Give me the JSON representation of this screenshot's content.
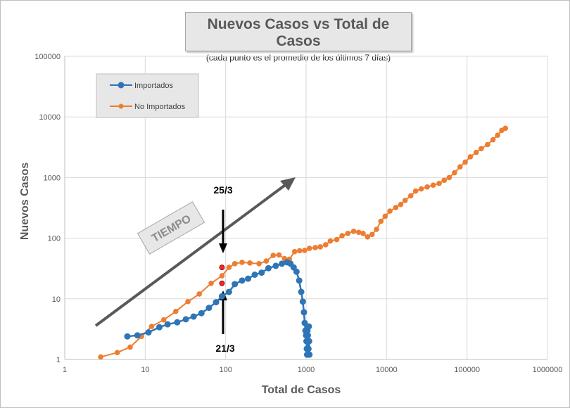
{
  "chart_data": {
    "type": "scatter",
    "title": "Nuevos Casos vs Total de Casos",
    "subtitle": "(cada punto es el promedio de los últimos 7 días)",
    "xlabel": "Total de Casos",
    "ylabel": "Nuevos Casos",
    "xscale": "log",
    "yscale": "log",
    "xlim": [
      1,
      1000000
    ],
    "ylim": [
      1,
      100000
    ],
    "grid": true,
    "legend_position": "top-left",
    "x_tick_labels": [
      "1",
      "10",
      "100",
      "1000",
      "10000",
      "100000",
      "1000000"
    ],
    "y_tick_labels": [
      "1",
      "10",
      "100",
      "1000",
      "10000",
      "100000"
    ],
    "series": [
      {
        "name": "Importados",
        "color": "#2e75b6",
        "x": [
          6,
          8,
          11,
          15,
          19,
          25,
          32,
          40,
          50,
          62,
          76,
          90,
          110,
          130,
          160,
          190,
          230,
          280,
          340,
          420,
          500,
          580,
          640,
          700,
          760,
          820,
          870,
          910,
          940,
          960,
          980,
          1000,
          1010,
          1020,
          1030,
          1040,
          1050,
          1060,
          1070,
          1080,
          1090,
          1100
        ],
        "y": [
          2.4,
          2.5,
          2.8,
          3.4,
          3.8,
          4.1,
          4.6,
          5.1,
          5.8,
          7.1,
          8.8,
          11,
          13,
          17.5,
          20,
          21.5,
          25,
          27,
          32,
          35,
          38,
          40,
          38,
          33,
          28,
          20,
          13,
          9,
          6,
          4,
          3,
          2.5,
          2,
          1.5,
          1.2,
          3,
          2.5,
          2,
          1.5,
          3.5,
          2,
          1.2
        ]
      },
      {
        "name": "No Importados",
        "color": "#ed7d31",
        "x": [
          2.8,
          4.5,
          6.5,
          9,
          12,
          17,
          24,
          34,
          47,
          66,
          90,
          110,
          130,
          160,
          200,
          260,
          320,
          390,
          460,
          540,
          620,
          720,
          830,
          960,
          1100,
          1300,
          1500,
          1750,
          2000,
          2400,
          2800,
          3300,
          3900,
          4500,
          5100,
          5800,
          6600,
          7500,
          8500,
          9600,
          11000,
          13000,
          15000,
          17000,
          20000,
          23000,
          27000,
          32000,
          38000,
          45000,
          52000,
          60000,
          70000,
          82000,
          95000,
          110000,
          130000,
          150000,
          180000,
          210000,
          240000,
          270000,
          300000
        ],
        "y": [
          1.1,
          1.3,
          1.6,
          2.4,
          3.5,
          4.5,
          6.2,
          9,
          12,
          18,
          24,
          33,
          38,
          40,
          39,
          38,
          42,
          52,
          53,
          46,
          45,
          60,
          62,
          63,
          68,
          70,
          72,
          78,
          90,
          95,
          110,
          120,
          130,
          125,
          120,
          105,
          115,
          140,
          190,
          230,
          280,
          320,
          360,
          420,
          500,
          600,
          650,
          700,
          750,
          800,
          900,
          1000,
          1200,
          1500,
          1800,
          2200,
          2600,
          3000,
          3500,
          4200,
          5000,
          6000,
          6500
        ],
        "annotated_points": [
          {
            "x": 90,
            "y": 33,
            "label": "25/3"
          },
          {
            "x": 90,
            "y": 18,
            "label": "21/3"
          }
        ]
      }
    ],
    "annotations": [
      "TIEMPO",
      "25/3",
      "21/3"
    ]
  }
}
